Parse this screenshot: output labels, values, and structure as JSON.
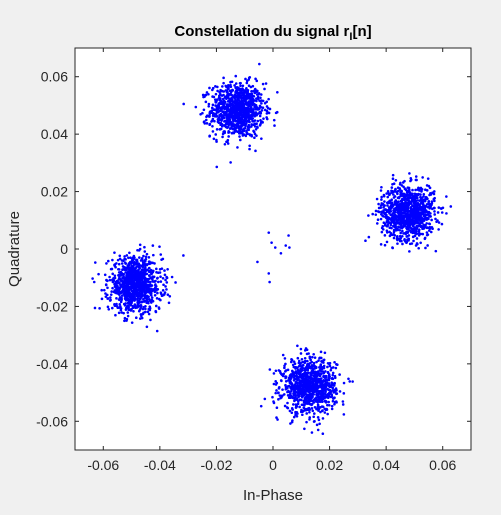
{
  "chart_data": {
    "type": "scatter",
    "title": {
      "main": "Constellation du signal r",
      "subscript": "I",
      "suffix": "[n]"
    },
    "xlabel": "In-Phase",
    "ylabel": "Quadrature",
    "xlim": [
      -0.07,
      0.07
    ],
    "ylim": [
      -0.07,
      0.07
    ],
    "xticks": [
      -0.06,
      -0.04,
      -0.02,
      0,
      0.02,
      0.04,
      0.06
    ],
    "yticks": [
      -0.06,
      -0.04,
      -0.02,
      0,
      0.02,
      0.04,
      0.06
    ],
    "xtick_labels": [
      "-0.06",
      "-0.04",
      "-0.02",
      "0",
      "0.02",
      "0.04",
      "0.06"
    ],
    "ytick_labels": [
      "-0.06",
      "-0.04",
      "-0.02",
      "0",
      "0.02",
      "0.04",
      "0.06"
    ],
    "grid": false,
    "marker_color": "#0000ff",
    "axes_background": "#ffffff",
    "figure_background": "#f0f0f0",
    "clusters": [
      {
        "center": [
          -0.0126,
          0.0483
        ],
        "spread": 0.0047,
        "count": 1000
      },
      {
        "center": [
          0.0478,
          0.0128
        ],
        "spread": 0.0047,
        "count": 1000
      },
      {
        "center": [
          -0.0487,
          -0.0125
        ],
        "spread": 0.0047,
        "count": 1000
      },
      {
        "center": [
          0.0128,
          -0.0478
        ],
        "spread": 0.0047,
        "count": 1000
      }
    ],
    "outlier_points": [
      {
        "x": -0.0015,
        "y": 0.0057
      },
      {
        "x": 0.0055,
        "y": 0.0047
      },
      {
        "x": -0.0005,
        "y": 0.0022
      },
      {
        "x": 0.0008,
        "y": 0.0005
      },
      {
        "x": 0.0058,
        "y": 0.0005
      },
      {
        "x": 0.0028,
        "y": -0.0015
      },
      {
        "x": -0.0055,
        "y": -0.0045
      },
      {
        "x": -0.0015,
        "y": -0.0085
      },
      {
        "x": -0.0012,
        "y": -0.0115
      },
      {
        "x": 0.0045,
        "y": 0.0012
      }
    ]
  }
}
